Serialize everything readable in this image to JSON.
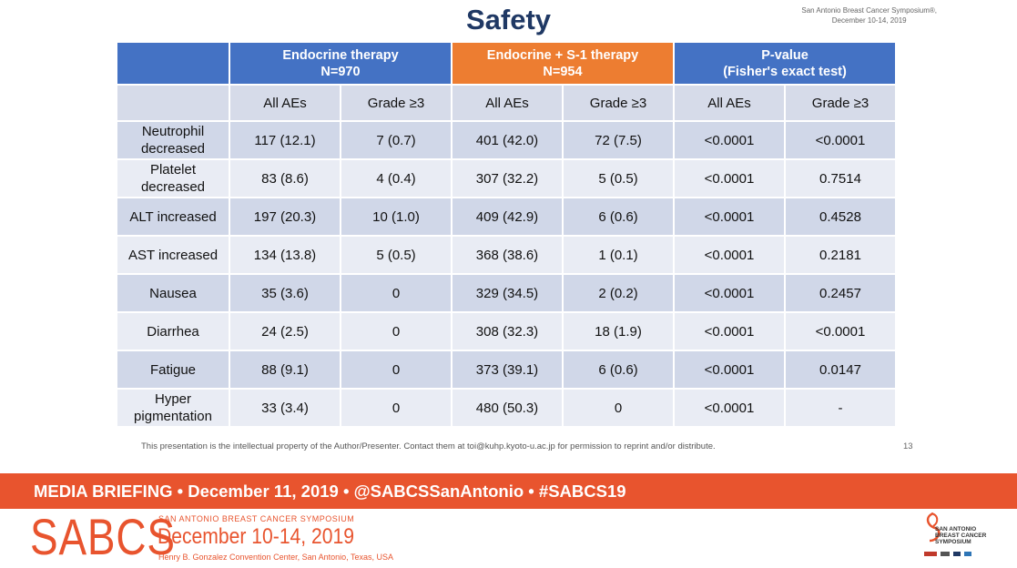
{
  "slide": {
    "title": "Safety",
    "conference_line1": "San Antonio Breast Cancer Symposium®,",
    "conference_line2": "December 10-14, 2019",
    "footer_note": "This presentation is the intellectual property of the Author/Presenter. Contact them at toi@kuhp.kyoto-u.ac.jp for permission to reprint and/or distribute.",
    "page_number": "13"
  },
  "table": {
    "groups": [
      {
        "line1": "Endocrine therapy",
        "line2": "N=970",
        "color": "#4472c4"
      },
      {
        "line1": "Endocrine + S-1 therapy",
        "line2": "N=954",
        "color": "#ed7d31"
      },
      {
        "line1": "P-value",
        "line2": "(Fisher's exact test)",
        "color": "#4472c4"
      }
    ],
    "subheaders": [
      "All AEs",
      "Grade ≥3",
      "All AEs",
      "Grade ≥3",
      "All AEs",
      "Grade ≥3"
    ],
    "rows": [
      {
        "label": "Neutrophil decreased",
        "values": [
          "117 (12.1)",
          "7 (0.7)",
          "401 (42.0)",
          "72 (7.5)",
          "<0.0001",
          "<0.0001"
        ]
      },
      {
        "label": "Platelet decreased",
        "values": [
          "83 (8.6)",
          "4 (0.4)",
          "307 (32.2)",
          "5 (0.5)",
          "<0.0001",
          "0.7514"
        ]
      },
      {
        "label": "ALT increased",
        "values": [
          "197 (20.3)",
          "10 (1.0)",
          "409 (42.9)",
          "6 (0.6)",
          "<0.0001",
          "0.4528"
        ]
      },
      {
        "label": "AST increased",
        "values": [
          "134 (13.8)",
          "5 (0.5)",
          "368 (38.6)",
          "1 (0.1)",
          "<0.0001",
          "0.2181"
        ]
      },
      {
        "label": "Nausea",
        "values": [
          "35 (3.6)",
          "0",
          "329 (34.5)",
          "2 (0.2)",
          "<0.0001",
          "0.2457"
        ]
      },
      {
        "label": "Diarrhea",
        "values": [
          "24 (2.5)",
          "0",
          "308 (32.3)",
          "18 (1.9)",
          "<0.0001",
          "<0.0001"
        ]
      },
      {
        "label": "Fatigue",
        "values": [
          "88 (9.1)",
          "0",
          "373 (39.1)",
          "6 (0.6)",
          "<0.0001",
          "0.0147"
        ]
      },
      {
        "label": "Hyper pigmentation",
        "values": [
          "33 (3.4)",
          "0",
          "480 (50.3)",
          "0",
          "<0.0001",
          "-"
        ]
      }
    ]
  },
  "banner": {
    "text": "MEDIA BRIEFING  •  December 11, 2019  •  @SABCSSanAntonio  •  #SABCS19",
    "color": "#e8542e"
  },
  "branding": {
    "wordmark": "SABCS",
    "symposium": "SAN ANTONIO BREAST CANCER SYMPOSIUM",
    "dates": "December 10-14, 2019",
    "venue": "Henry B. Gonzalez Convention Center, San Antonio, Texas, USA",
    "logo_line1": "SAN ANTONIO",
    "logo_line2": "BREAST CANCER",
    "logo_line3": "SYMPOSIUM"
  }
}
